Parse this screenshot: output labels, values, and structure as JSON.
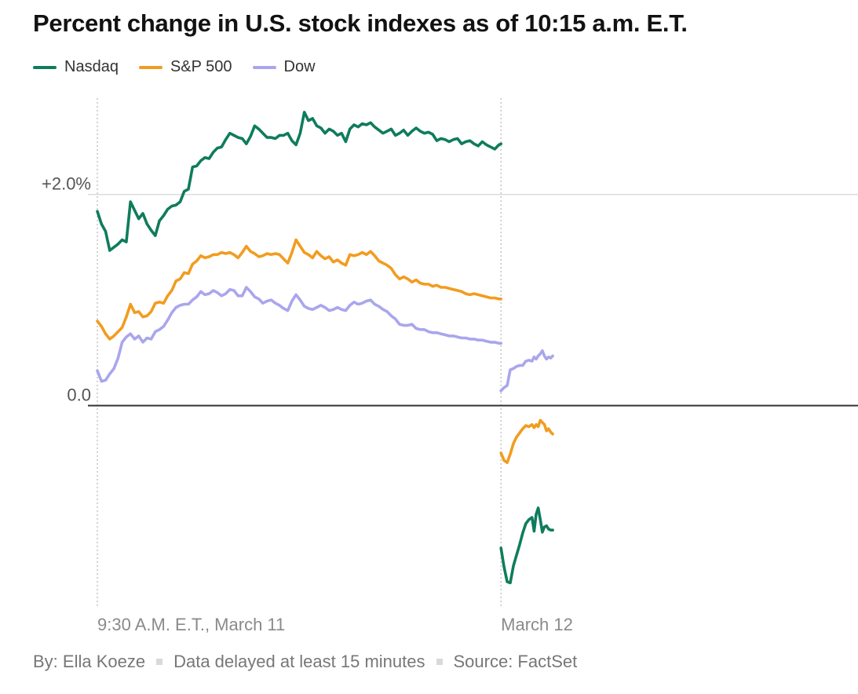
{
  "title": "Percent change in U.S. stock indexes as of 10:15 a.m. E.T.",
  "footer": {
    "byline": "By: Ella Koeze",
    "delay_note": "Data delayed at least 15 minutes",
    "source": "Source: FactSet"
  },
  "chart_data": {
    "type": "line",
    "title": "Percent change in U.S. stock indexes as of 10:15 a.m. E.T.",
    "xlabel": "",
    "ylabel": "",
    "ylim": [
      -1.9,
      2.95
    ],
    "y_ticks": [
      {
        "value": 2.0,
        "label": "+2.0%"
      },
      {
        "value": 0.0,
        "label": "0.0"
      }
    ],
    "x_ticks": [
      {
        "value": 0,
        "label": "9:30 A.M. E.T., March 11"
      },
      {
        "value": 390,
        "label": "March 12"
      }
    ],
    "xlim": [
      0,
      735
    ],
    "grid": true,
    "legend_position": "top-left",
    "series": [
      {
        "name": "Nasdaq",
        "color": "#0f7c5c",
        "segments": [
          {
            "x": [
              0,
              4,
              8,
              12,
              16,
              20,
              24,
              28,
              32,
              36,
              40,
              44,
              48,
              52,
              56,
              60,
              64,
              68,
              72,
              76,
              80,
              84,
              88,
              92,
              96,
              100,
              104,
              108,
              112,
              116,
              120,
              124,
              128,
              132,
              136,
              140,
              144,
              148,
              152,
              156,
              160,
              164,
              168,
              172,
              176,
              180,
              184,
              188,
              192,
              196,
              200,
              204,
              208,
              212,
              216,
              220,
              224,
              228,
              232,
              236,
              240,
              244,
              248,
              252,
              256,
              260,
              264,
              268,
              272,
              276,
              280,
              284,
              288,
              292,
              296,
              300,
              304,
              308,
              312,
              316,
              320,
              324,
              328,
              332,
              336,
              340,
              344,
              348,
              352,
              356,
              360,
              364,
              368,
              372,
              376,
              380,
              384,
              388,
              390
            ],
            "y": [
              1.84,
              1.72,
              1.65,
              1.47,
              1.5,
              1.53,
              1.57,
              1.55,
              1.93,
              1.85,
              1.77,
              1.82,
              1.72,
              1.66,
              1.61,
              1.75,
              1.8,
              1.86,
              1.89,
              1.9,
              1.93,
              2.03,
              2.05,
              2.26,
              2.27,
              2.32,
              2.35,
              2.34,
              2.4,
              2.44,
              2.45,
              2.52,
              2.58,
              2.56,
              2.54,
              2.53,
              2.48,
              2.55,
              2.65,
              2.62,
              2.58,
              2.54,
              2.54,
              2.53,
              2.56,
              2.56,
              2.58,
              2.51,
              2.47,
              2.58,
              2.78,
              2.7,
              2.72,
              2.65,
              2.63,
              2.58,
              2.62,
              2.6,
              2.56,
              2.58,
              2.5,
              2.62,
              2.66,
              2.64,
              2.67,
              2.66,
              2.68,
              2.64,
              2.61,
              2.58,
              2.6,
              2.62,
              2.56,
              2.58,
              2.61,
              2.56,
              2.6,
              2.63,
              2.6,
              2.58,
              2.59,
              2.57,
              2.51,
              2.53,
              2.52,
              2.5,
              2.52,
              2.53,
              2.48,
              2.5,
              2.51,
              2.48,
              2.46,
              2.5,
              2.47,
              2.45,
              2.43,
              2.47,
              2.48
            ]
          },
          {
            "x": [
              390,
              393,
              396,
              399,
              402,
              405,
              408,
              411,
              414,
              417,
              420,
              422,
              424,
              426,
              428,
              430,
              432,
              434,
              436,
              438,
              440
            ],
            "y": [
              -1.35,
              -1.53,
              -1.67,
              -1.68,
              -1.52,
              -1.42,
              -1.32,
              -1.21,
              -1.12,
              -1.08,
              -1.06,
              -1.19,
              -1.03,
              -0.97,
              -1.08,
              -1.2,
              -1.15,
              -1.14,
              -1.17,
              -1.18,
              -1.18
            ]
          }
        ]
      },
      {
        "name": "S&P 500",
        "color": "#f29c1f",
        "segments": [
          {
            "x": [
              0,
              4,
              8,
              12,
              16,
              20,
              24,
              28,
              32,
              36,
              40,
              44,
              48,
              52,
              56,
              60,
              64,
              68,
              72,
              76,
              80,
              84,
              88,
              92,
              96,
              100,
              104,
              108,
              112,
              116,
              120,
              124,
              128,
              132,
              136,
              140,
              144,
              148,
              152,
              156,
              160,
              164,
              168,
              172,
              176,
              180,
              184,
              188,
              192,
              196,
              200,
              204,
              208,
              212,
              216,
              220,
              224,
              228,
              232,
              236,
              240,
              244,
              248,
              252,
              256,
              260,
              264,
              268,
              272,
              276,
              280,
              284,
              288,
              292,
              296,
              300,
              304,
              308,
              312,
              316,
              320,
              324,
              328,
              332,
              336,
              340,
              344,
              348,
              352,
              356,
              360,
              364,
              368,
              372,
              376,
              380,
              384,
              388,
              390
            ],
            "y": [
              0.8,
              0.75,
              0.68,
              0.63,
              0.66,
              0.7,
              0.74,
              0.84,
              0.96,
              0.88,
              0.89,
              0.84,
              0.85,
              0.89,
              0.97,
              0.98,
              0.97,
              1.04,
              1.09,
              1.18,
              1.2,
              1.26,
              1.25,
              1.34,
              1.37,
              1.42,
              1.4,
              1.41,
              1.43,
              1.43,
              1.45,
              1.44,
              1.45,
              1.43,
              1.4,
              1.45,
              1.51,
              1.46,
              1.44,
              1.41,
              1.42,
              1.44,
              1.43,
              1.44,
              1.43,
              1.39,
              1.35,
              1.45,
              1.57,
              1.51,
              1.45,
              1.43,
              1.4,
              1.46,
              1.42,
              1.39,
              1.41,
              1.36,
              1.38,
              1.35,
              1.33,
              1.43,
              1.42,
              1.43,
              1.45,
              1.43,
              1.46,
              1.42,
              1.37,
              1.35,
              1.33,
              1.3,
              1.24,
              1.2,
              1.22,
              1.2,
              1.17,
              1.19,
              1.16,
              1.15,
              1.15,
              1.13,
              1.14,
              1.12,
              1.12,
              1.11,
              1.1,
              1.09,
              1.08,
              1.06,
              1.05,
              1.06,
              1.05,
              1.04,
              1.03,
              1.02,
              1.02,
              1.01,
              1.01
            ]
          },
          {
            "x": [
              390,
              393,
              396,
              399,
              402,
              405,
              408,
              411,
              414,
              417,
              420,
              422,
              424,
              426,
              428,
              430,
              432,
              434,
              436,
              438,
              440
            ],
            "y": [
              -0.45,
              -0.52,
              -0.54,
              -0.46,
              -0.36,
              -0.3,
              -0.26,
              -0.22,
              -0.19,
              -0.2,
              -0.18,
              -0.21,
              -0.18,
              -0.2,
              -0.14,
              -0.16,
              -0.18,
              -0.24,
              -0.22,
              -0.25,
              -0.27
            ]
          }
        ]
      },
      {
        "name": "Dow",
        "color": "#a9a6ed",
        "segments": [
          {
            "x": [
              0,
              4,
              8,
              12,
              16,
              20,
              24,
              28,
              32,
              36,
              40,
              44,
              48,
              52,
              56,
              60,
              64,
              68,
              72,
              76,
              80,
              84,
              88,
              92,
              96,
              100,
              104,
              108,
              112,
              116,
              120,
              124,
              128,
              132,
              136,
              140,
              144,
              148,
              152,
              156,
              160,
              164,
              168,
              172,
              176,
              180,
              184,
              188,
              192,
              196,
              200,
              204,
              208,
              212,
              216,
              220,
              224,
              228,
              232,
              236,
              240,
              244,
              248,
              252,
              256,
              260,
              264,
              268,
              272,
              276,
              280,
              284,
              288,
              292,
              296,
              300,
              304,
              308,
              312,
              316,
              320,
              324,
              328,
              332,
              336,
              340,
              344,
              348,
              352,
              356,
              360,
              364,
              368,
              372,
              376,
              380,
              384,
              388,
              390
            ],
            "y": [
              0.33,
              0.23,
              0.24,
              0.3,
              0.35,
              0.45,
              0.6,
              0.65,
              0.68,
              0.63,
              0.66,
              0.6,
              0.64,
              0.63,
              0.7,
              0.72,
              0.75,
              0.81,
              0.88,
              0.93,
              0.95,
              0.96,
              0.96,
              1.0,
              1.03,
              1.08,
              1.05,
              1.06,
              1.09,
              1.07,
              1.04,
              1.06,
              1.1,
              1.09,
              1.04,
              1.04,
              1.12,
              1.08,
              1.03,
              1.01,
              0.97,
              0.99,
              1.0,
              0.97,
              0.95,
              0.92,
              0.9,
              0.99,
              1.05,
              1.0,
              0.94,
              0.92,
              0.91,
              0.93,
              0.95,
              0.93,
              0.9,
              0.91,
              0.93,
              0.91,
              0.9,
              0.95,
              0.98,
              0.96,
              0.97,
              0.99,
              1.0,
              0.96,
              0.94,
              0.91,
              0.89,
              0.85,
              0.82,
              0.77,
              0.76,
              0.76,
              0.77,
              0.73,
              0.72,
              0.72,
              0.7,
              0.69,
              0.69,
              0.68,
              0.67,
              0.66,
              0.66,
              0.65,
              0.64,
              0.64,
              0.63,
              0.63,
              0.62,
              0.62,
              0.61,
              0.6,
              0.6,
              0.59,
              0.59
            ]
          },
          {
            "x": [
              390,
              393,
              396,
              399,
              402,
              405,
              408,
              411,
              414,
              417,
              420,
              422,
              424,
              426,
              428,
              430,
              432,
              434,
              436,
              438,
              440
            ],
            "y": [
              0.14,
              0.17,
              0.19,
              0.34,
              0.35,
              0.37,
              0.38,
              0.38,
              0.42,
              0.43,
              0.42,
              0.46,
              0.44,
              0.47,
              0.49,
              0.52,
              0.47,
              0.44,
              0.46,
              0.45,
              0.47
            ]
          }
        ]
      }
    ]
  }
}
